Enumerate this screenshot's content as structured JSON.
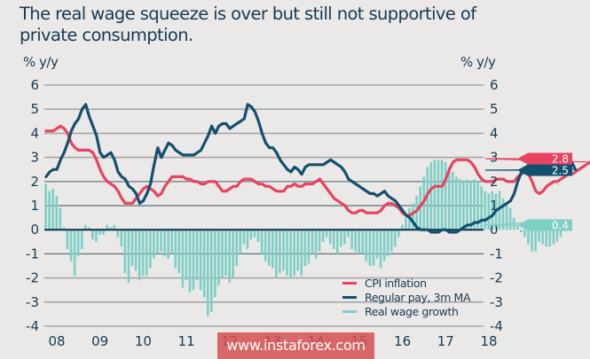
{
  "chart_data": {
    "type": "line",
    "title": "The real wage squeeze is over but still not supportive of private consumption.",
    "ylabel_left": "% y/y",
    "ylabel_right": "% y/y",
    "ylim": [
      -4,
      6
    ],
    "yticks": [
      6,
      5,
      4,
      3,
      2,
      1,
      0,
      -1,
      -2,
      -3,
      -4
    ],
    "xlim": [
      2008,
      2018.35
    ],
    "xticks": [
      "08",
      "09",
      "10",
      "11",
      "12",
      "13",
      "14",
      "15",
      "16",
      "17",
      "18"
    ],
    "grid": true,
    "legend_position": "bottom-right",
    "series": [
      {
        "name": "CPI inflation",
        "type": "line",
        "color": "#e8435f",
        "start": 2008.0,
        "step_months": 1,
        "values": [
          4.1,
          4.1,
          4.1,
          4.2,
          4.3,
          4.2,
          4.0,
          3.6,
          3.4,
          3.3,
          3.3,
          3.3,
          3.3,
          3.2,
          2.9,
          2.5,
          2.2,
          2.0,
          1.9,
          1.8,
          1.6,
          1.3,
          1.1,
          1.1,
          1.1,
          1.3,
          1.5,
          1.7,
          1.8,
          1.7,
          1.6,
          1.4,
          1.5,
          1.8,
          2.0,
          2.2,
          2.2,
          2.2,
          2.2,
          2.1,
          2.1,
          2.0,
          2.0,
          1.9,
          1.9,
          2.0,
          2.0,
          2.0,
          1.8,
          1.6,
          1.6,
          1.7,
          1.8,
          1.8,
          2.0,
          2.1,
          2.1,
          2.1,
          2.0,
          1.9,
          1.9,
          1.8,
          1.8,
          1.7,
          1.6,
          1.6,
          1.6,
          1.8,
          1.8,
          1.9,
          1.8,
          1.8,
          1.9,
          1.9,
          1.9,
          2.0,
          2.1,
          1.9,
          1.7,
          1.5,
          1.3,
          1.2,
          1.1,
          1.0,
          0.8,
          0.7,
          0.7,
          0.8,
          0.8,
          0.7,
          0.7,
          0.7,
          0.7,
          0.8,
          1.0,
          1.1,
          1.1,
          1.0,
          0.9,
          0.7,
          0.6,
          0.6,
          0.7,
          0.8,
          1.0,
          1.2,
          1.5,
          1.7,
          1.8,
          1.8,
          1.8,
          2.1,
          2.5,
          2.8,
          2.9,
          2.9,
          2.9,
          2.9,
          2.8,
          2.6,
          2.3,
          2.1,
          2.0,
          2.0,
          2.0,
          2.1,
          2.1,
          2.1,
          2.0,
          2.0,
          2.0,
          2.2,
          2.3,
          2.4,
          2.3,
          2.0,
          1.6,
          1.5,
          1.6,
          1.8,
          1.9,
          2.0,
          2.0,
          2.1,
          2.2,
          2.3,
          2.3,
          2.4,
          2.5,
          2.6,
          2.7,
          2.8,
          2.8
        ]
      },
      {
        "name": "Regular pay, 3m MA",
        "type": "line",
        "color": "#13506e",
        "start": 2008.0,
        "step_months": 1,
        "values": [
          2.2,
          2.4,
          2.5,
          2.5,
          2.9,
          3.2,
          3.6,
          4.1,
          4.4,
          4.6,
          5.0,
          5.2,
          4.7,
          4.3,
          3.9,
          3.2,
          3.0,
          3.1,
          3.2,
          2.9,
          2.4,
          2.2,
          2.1,
          1.8,
          1.7,
          1.5,
          1.1,
          1.2,
          1.5,
          1.9,
          2.7,
          3.4,
          3.0,
          3.3,
          3.6,
          3.5,
          3.3,
          3.2,
          3.1,
          3.1,
          3.1,
          3.1,
          3.2,
          3.3,
          3.6,
          3.9,
          4.3,
          4.0,
          4.3,
          4.4,
          4.4,
          4.2,
          4.3,
          4.4,
          4.5,
          4.6,
          5.2,
          5.1,
          4.9,
          4.5,
          4.0,
          3.6,
          3.4,
          3.4,
          3.2,
          2.9,
          2.7,
          2.5,
          2.4,
          2.6,
          2.5,
          2.3,
          2.6,
          2.7,
          2.7,
          2.7,
          2.7,
          2.7,
          2.8,
          2.9,
          2.8,
          2.7,
          2.6,
          2.4,
          2.1,
          2.0,
          1.9,
          1.8,
          1.7,
          1.6,
          1.5,
          1.5,
          1.4,
          1.5,
          1.6,
          1.4,
          1.3,
          1.2,
          1.0,
          0.8,
          0.6,
          0.5,
          0.3,
          0.1,
          0.0,
          0.0,
          0.0,
          -0.1,
          -0.1,
          -0.1,
          0.0,
          0.0,
          -0.1,
          -0.1,
          -0.1,
          0.0,
          0.1,
          0.2,
          0.2,
          0.3,
          0.3,
          0.4,
          0.4,
          0.5,
          0.6,
          0.8,
          0.9,
          1.0,
          1.1,
          1.2,
          1.5,
          2.0,
          2.4,
          2.5,
          2.7,
          3.0,
          2.8,
          2.8,
          3.0,
          3.0,
          2.9,
          3.0,
          3.1,
          3.1,
          3.0,
          3.0,
          2.8,
          2.5
        ]
      },
      {
        "name": "Real wage growth",
        "type": "bar",
        "color": "#7ecfc6",
        "start": 2008.0,
        "step_months": 1,
        "values": [
          1.9,
          1.6,
          1.7,
          1.4,
          0.9,
          0.1,
          -0.8,
          -1.3,
          -1.9,
          -1.1,
          -0.8,
          0.2,
          0.1,
          -0.4,
          -0.5,
          -0.2,
          -0.2,
          0.2,
          0.1,
          0.2,
          -0.3,
          -0.7,
          -1.8,
          -2.2,
          -1.5,
          -1.7,
          -2.1,
          -1.9,
          -1.9,
          -1.6,
          -1.2,
          -1.0,
          -0.9,
          -1.1,
          -1.2,
          -1.0,
          -1.6,
          -1.8,
          -2.4,
          -2.1,
          -2.6,
          -2.5,
          -2.1,
          -2.5,
          -2.8,
          -3.6,
          -3.4,
          -2.8,
          -2.3,
          -2.0,
          -1.9,
          -2.2,
          -2.0,
          -1.5,
          -1.0,
          -0.6,
          -0.8,
          -0.4,
          -0.3,
          -0.5,
          -1.0,
          -1.3,
          -1.5,
          -1.6,
          -2.0,
          -1.8,
          -1.7,
          -1.9,
          -2.0,
          -1.9,
          -1.7,
          -1.9,
          -1.5,
          -1.4,
          -1.0,
          -1.2,
          -0.9,
          -0.5,
          -0.3,
          -0.6,
          -0.8,
          -1.0,
          -0.7,
          -0.6,
          -0.3,
          -0.8,
          -0.9,
          -1.0,
          -1.0,
          -1.3,
          -1.5,
          -1.5,
          -1.2,
          -1.6,
          -1.3,
          -1.1,
          -0.9,
          -0.7,
          -0.3,
          0.2,
          0.5,
          0.9,
          1.1,
          1.4,
          1.8,
          2.2,
          2.6,
          2.8,
          2.9,
          2.9,
          2.9,
          2.8,
          2.6,
          2.4,
          2.2,
          2.1,
          2.0,
          2.1,
          2.0,
          2.1,
          2.0,
          1.8,
          1.6,
          1.5,
          1.6,
          1.5,
          1.6,
          1.3,
          1.1,
          0.9,
          0.5,
          0.2,
          -0.1,
          -0.3,
          -0.6,
          -0.9,
          -0.9,
          -0.5,
          -0.6,
          -0.7,
          -0.7,
          -0.6,
          -0.5,
          -0.3,
          0.2,
          0.4
        ]
      }
    ],
    "end_labels": [
      {
        "series": "CPI inflation",
        "value": "2.8",
        "color": "#e8435f"
      },
      {
        "series": "Regular pay, 3m MA",
        "value": "2.5",
        "color": "#13506e"
      },
      {
        "series": "Real wage growth",
        "value": "0.4",
        "color": "#7ecfc6"
      }
    ]
  },
  "title": "The real wage squeeze is over but still not supportive of private consumption.",
  "unit_left": "% y/y",
  "unit_right": "% y/y",
  "legend": [
    {
      "label": "CPI inflation",
      "color": "#e8435f"
    },
    {
      "label": "Regular pay, 3m MA",
      "color": "#13506e"
    },
    {
      "label": "Real wage growth",
      "color": "#7ecfc6"
    }
  ],
  "watermark": "www.instaforex.com"
}
